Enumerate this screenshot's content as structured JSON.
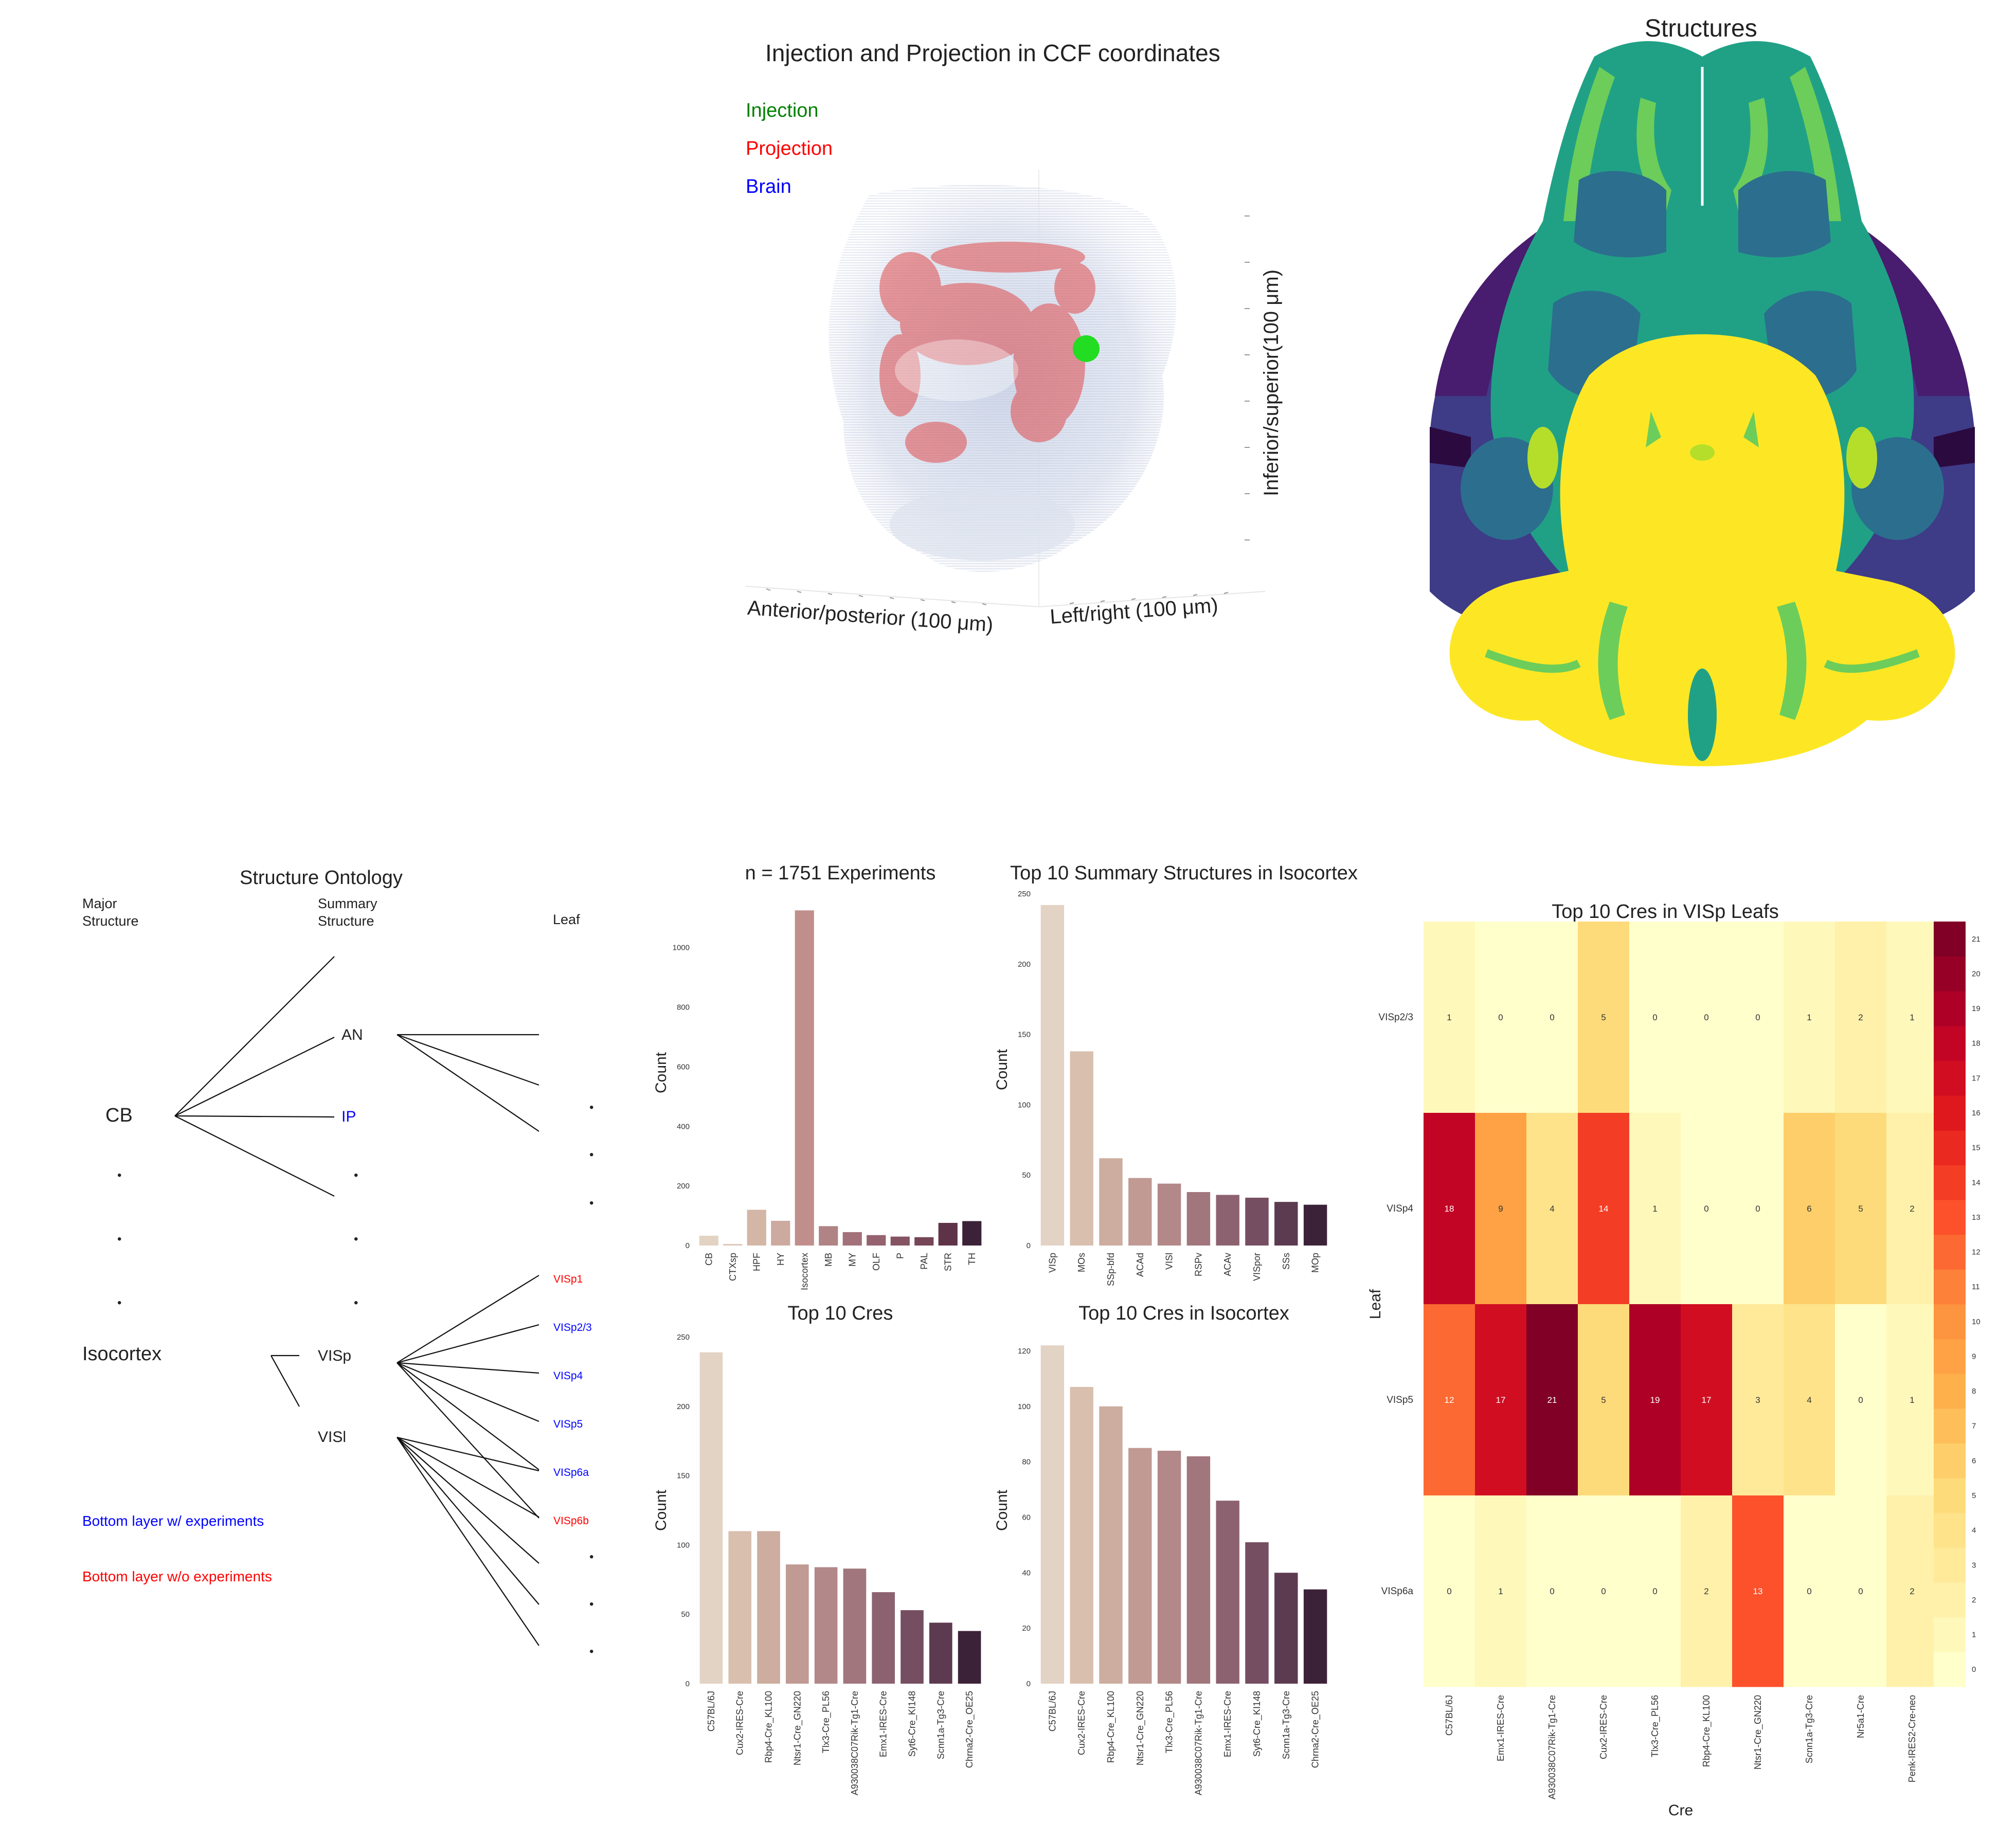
{
  "page": {},
  "panel3d": {
    "title": "Injection and Projection in CCF coordinates",
    "legend": [
      {
        "label": "Injection",
        "color": "#008000"
      },
      {
        "label": "Projection",
        "color": "#ff0000"
      },
      {
        "label": "Brain",
        "color": "#0000ff"
      }
    ],
    "xlabel": "Anterior/posterior (100 μm)",
    "ylabel": "Left/right (100 μm)",
    "zlabel": "Inferior/superior(100 μm)"
  },
  "structures": {
    "title": "Structures",
    "palette": [
      "#440154",
      "#3b528b",
      "#21918c",
      "#5ec962",
      "#fde725"
    ]
  },
  "ontology": {
    "title": "Structure Ontology",
    "col_major": "Major\nStructure",
    "col_summary": "Summary\nStructure",
    "col_leaf": "Leaf",
    "major_cb": "CB",
    "major_iso": "Isocortex",
    "sum_an": "AN",
    "sum_ip": "IP",
    "sum_visp": "VISp",
    "sum_visl": "VISl",
    "leaves": [
      {
        "label": "VISp1",
        "color": "#ff0000"
      },
      {
        "label": "VISp2/3",
        "color": "#0000ff"
      },
      {
        "label": "VISp4",
        "color": "#0000ff"
      },
      {
        "label": "VISp5",
        "color": "#0000ff"
      },
      {
        "label": "VISp6a",
        "color": "#0000ff"
      },
      {
        "label": "VISp6b",
        "color": "#ff0000"
      }
    ],
    "legend_with": "Bottom layer w/ experiments",
    "legend_without": "Bottom layer w/o experiments",
    "color_with": "#0000ff",
    "color_without": "#ff0000",
    "dot": "•"
  },
  "chart_data": [
    {
      "type": "bar",
      "title": "n = 1751 Experiments",
      "ylabel": "Count",
      "categories": [
        "CB",
        "CTXsp",
        "HPF",
        "HY",
        "Isocortex",
        "MB",
        "MY",
        "OLF",
        "P",
        "PAL",
        "STR",
        "TH"
      ],
      "values": [
        33,
        5,
        120,
        83,
        1125,
        65,
        45,
        35,
        30,
        28,
        76,
        82
      ],
      "ylim": [
        0,
        1160
      ],
      "yticks": [
        0,
        200,
        400,
        600,
        800,
        1000
      ],
      "colors": [
        "#e3d3c4",
        "#dcc6b6",
        "#d4b6a6",
        "#ccaaa0",
        "#c08f8c",
        "#b08384",
        "#a3717a",
        "#956270",
        "#855463",
        "#754657",
        "#5e3348",
        "#3c2238"
      ]
    },
    {
      "type": "bar",
      "title": "Top 10 Summary Structures in Isocortex",
      "ylabel": "Count",
      "categories": [
        "VISp",
        "MOs",
        "SSp-bfd",
        "ACAd",
        "VISl",
        "RSPv",
        "ACAv",
        "VISpor",
        "SSs",
        "MOp"
      ],
      "values": [
        242,
        138,
        62,
        48,
        44,
        38,
        36,
        34,
        31,
        29
      ],
      "ylim": [
        0,
        250
      ],
      "yticks": [
        0,
        50,
        100,
        150,
        200,
        250
      ],
      "colors": [
        "#e3d3c4",
        "#d8bfae",
        "#ccad9f",
        "#c09a93",
        "#b28888",
        "#a1767d",
        "#8d6270",
        "#764e61",
        "#5c3a50",
        "#3c2238"
      ]
    },
    {
      "type": "bar",
      "title": "Top 10 Cres",
      "ylabel": "Count",
      "categories": [
        "C57BL/6J",
        "Cux2-IRES-Cre",
        "Rbp4-Cre_KL100",
        "Ntsr1-Cre_GN220",
        "Tlx3-Cre_PL56",
        "A930038C07Rik-Tg1-Cre",
        "Emx1-IRES-Cre",
        "Syt6-Cre_KI148",
        "Scnn1a-Tg3-Cre",
        "Chrna2-Cre_OE25"
      ],
      "values": [
        239,
        110,
        110,
        86,
        84,
        83,
        66,
        53,
        44,
        38
      ],
      "ylim": [
        0,
        250
      ],
      "yticks": [
        0,
        50,
        100,
        150,
        200,
        250
      ],
      "colors": [
        "#e3d3c4",
        "#d8bfae",
        "#ccad9f",
        "#c09a93",
        "#b28888",
        "#a1767d",
        "#8d6270",
        "#764e61",
        "#5c3a50",
        "#3c2238"
      ]
    },
    {
      "type": "bar",
      "title": "Top 10 Cres in Isocortex",
      "ylabel": "Count",
      "categories": [
        "C57BL/6J",
        "Cux2-IRES-Cre",
        "Rbp4-Cre_KL100",
        "Ntsr1-Cre_GN220",
        "Tlx3-Cre_PL56",
        "A930038C07Rik-Tg1-Cre",
        "Emx1-IRES-Cre",
        "Syt6-Cre_KI148",
        "Scnn1a-Tg3-Cre",
        "Chrna2-Cre_OE25"
      ],
      "values": [
        122,
        107,
        100,
        85,
        84,
        82,
        66,
        51,
        40,
        34
      ],
      "ylim": [
        0,
        125
      ],
      "yticks": [
        0,
        20,
        40,
        60,
        80,
        100,
        120
      ],
      "colors": [
        "#e3d3c4",
        "#d8bfae",
        "#ccad9f",
        "#c09a93",
        "#b28888",
        "#a1767d",
        "#8d6270",
        "#764e61",
        "#5c3a50",
        "#3c2238"
      ]
    },
    {
      "type": "heatmap",
      "title": "Top 10 Cres in VISp Leafs",
      "xlabel": "Cre",
      "ylabel": "Leaf",
      "rows": [
        "VISp2/3",
        "VISp4",
        "VISp5",
        "VISp6a"
      ],
      "cols": [
        "C57BL/6J",
        "Emx1-IRES-Cre",
        "A930038C07Rik-Tg1-Cre",
        "Cux2-IRES-Cre",
        "Tlx3-Cre_PL56",
        "Rbp4-Cre_KL100",
        "Ntsr1-Cre_GN220",
        "Scnn1a-Tg3-Cre",
        "Nr5a1-Cre",
        "Penk-IRES2-Cre-neo"
      ],
      "values": [
        [
          1,
          0,
          0,
          5,
          0,
          0,
          0,
          1,
          2,
          1
        ],
        [
          18,
          9,
          4,
          14,
          1,
          0,
          0,
          6,
          5,
          2
        ],
        [
          12,
          17,
          21,
          5,
          19,
          17,
          3,
          4,
          0,
          1
        ],
        [
          0,
          1,
          0,
          0,
          0,
          2,
          13,
          0,
          0,
          2
        ]
      ],
      "vmin": 0,
      "vmax": 21,
      "colorbar_ticks": [
        0,
        1,
        2,
        3,
        4,
        5,
        6,
        7,
        8,
        9,
        10,
        11,
        12,
        13,
        14,
        15,
        16,
        17,
        18,
        19,
        20,
        21
      ]
    }
  ]
}
